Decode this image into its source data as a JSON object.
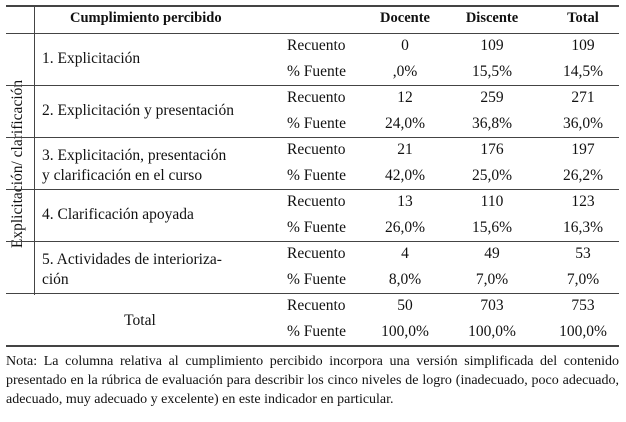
{
  "header": {
    "concept": "Cumplimiento percibido",
    "col1": "Docente",
    "col2": "Discente",
    "col3": "Total"
  },
  "group_label": "Explicitación/ clarificación",
  "row_labels": {
    "count": "Recuento",
    "pct": "% Fuente"
  },
  "rows": [
    {
      "label": "1. Explicitación",
      "docente": [
        "0",
        ",0%"
      ],
      "discente": [
        "109",
        "15,5%"
      ],
      "total": [
        "109",
        "14,5%"
      ]
    },
    {
      "label": "2. Explicitación y presentación",
      "docente": [
        "12",
        "24,0%"
      ],
      "discente": [
        "259",
        "36,8%"
      ],
      "total": [
        "271",
        "36,0%"
      ]
    },
    {
      "label": "3. Explicitación, presentación y clarificación en el curso",
      "label_lines": [
        "3. Explicitación, presentación",
        "y clarificación en el curso"
      ],
      "docente": [
        "21",
        "42,0%"
      ],
      "discente": [
        "176",
        "25,0%"
      ],
      "total": [
        "197",
        "26,2%"
      ]
    },
    {
      "label": "4. Clarificación apoyada",
      "docente": [
        "13",
        "26,0%"
      ],
      "discente": [
        "110",
        "15,6%"
      ],
      "total": [
        "123",
        "16,3%"
      ]
    },
    {
      "label": "5. Actividades de interiorización",
      "label_lines": [
        "5. Actividades de interioriza-",
        "ción"
      ],
      "docente": [
        "4",
        "8,0%"
      ],
      "discente": [
        "49",
        "7,0%"
      ],
      "total": [
        "53",
        "7,0%"
      ]
    }
  ],
  "total_row": {
    "label": "Total",
    "docente": [
      "50",
      "100,0%"
    ],
    "discente": [
      "703",
      "100,0%"
    ],
    "total": [
      "753",
      "100,0%"
    ]
  },
  "note": "Nota:  La columna relativa al cumplimiento percibido incorpora una versión simplificada del contenido presentado en la rúbrica de evaluación para describir los cinco niveles de logro (inadecuado, poco adecuado, adecuado, muy adecuado y excelente) en este indicador en particular."
}
